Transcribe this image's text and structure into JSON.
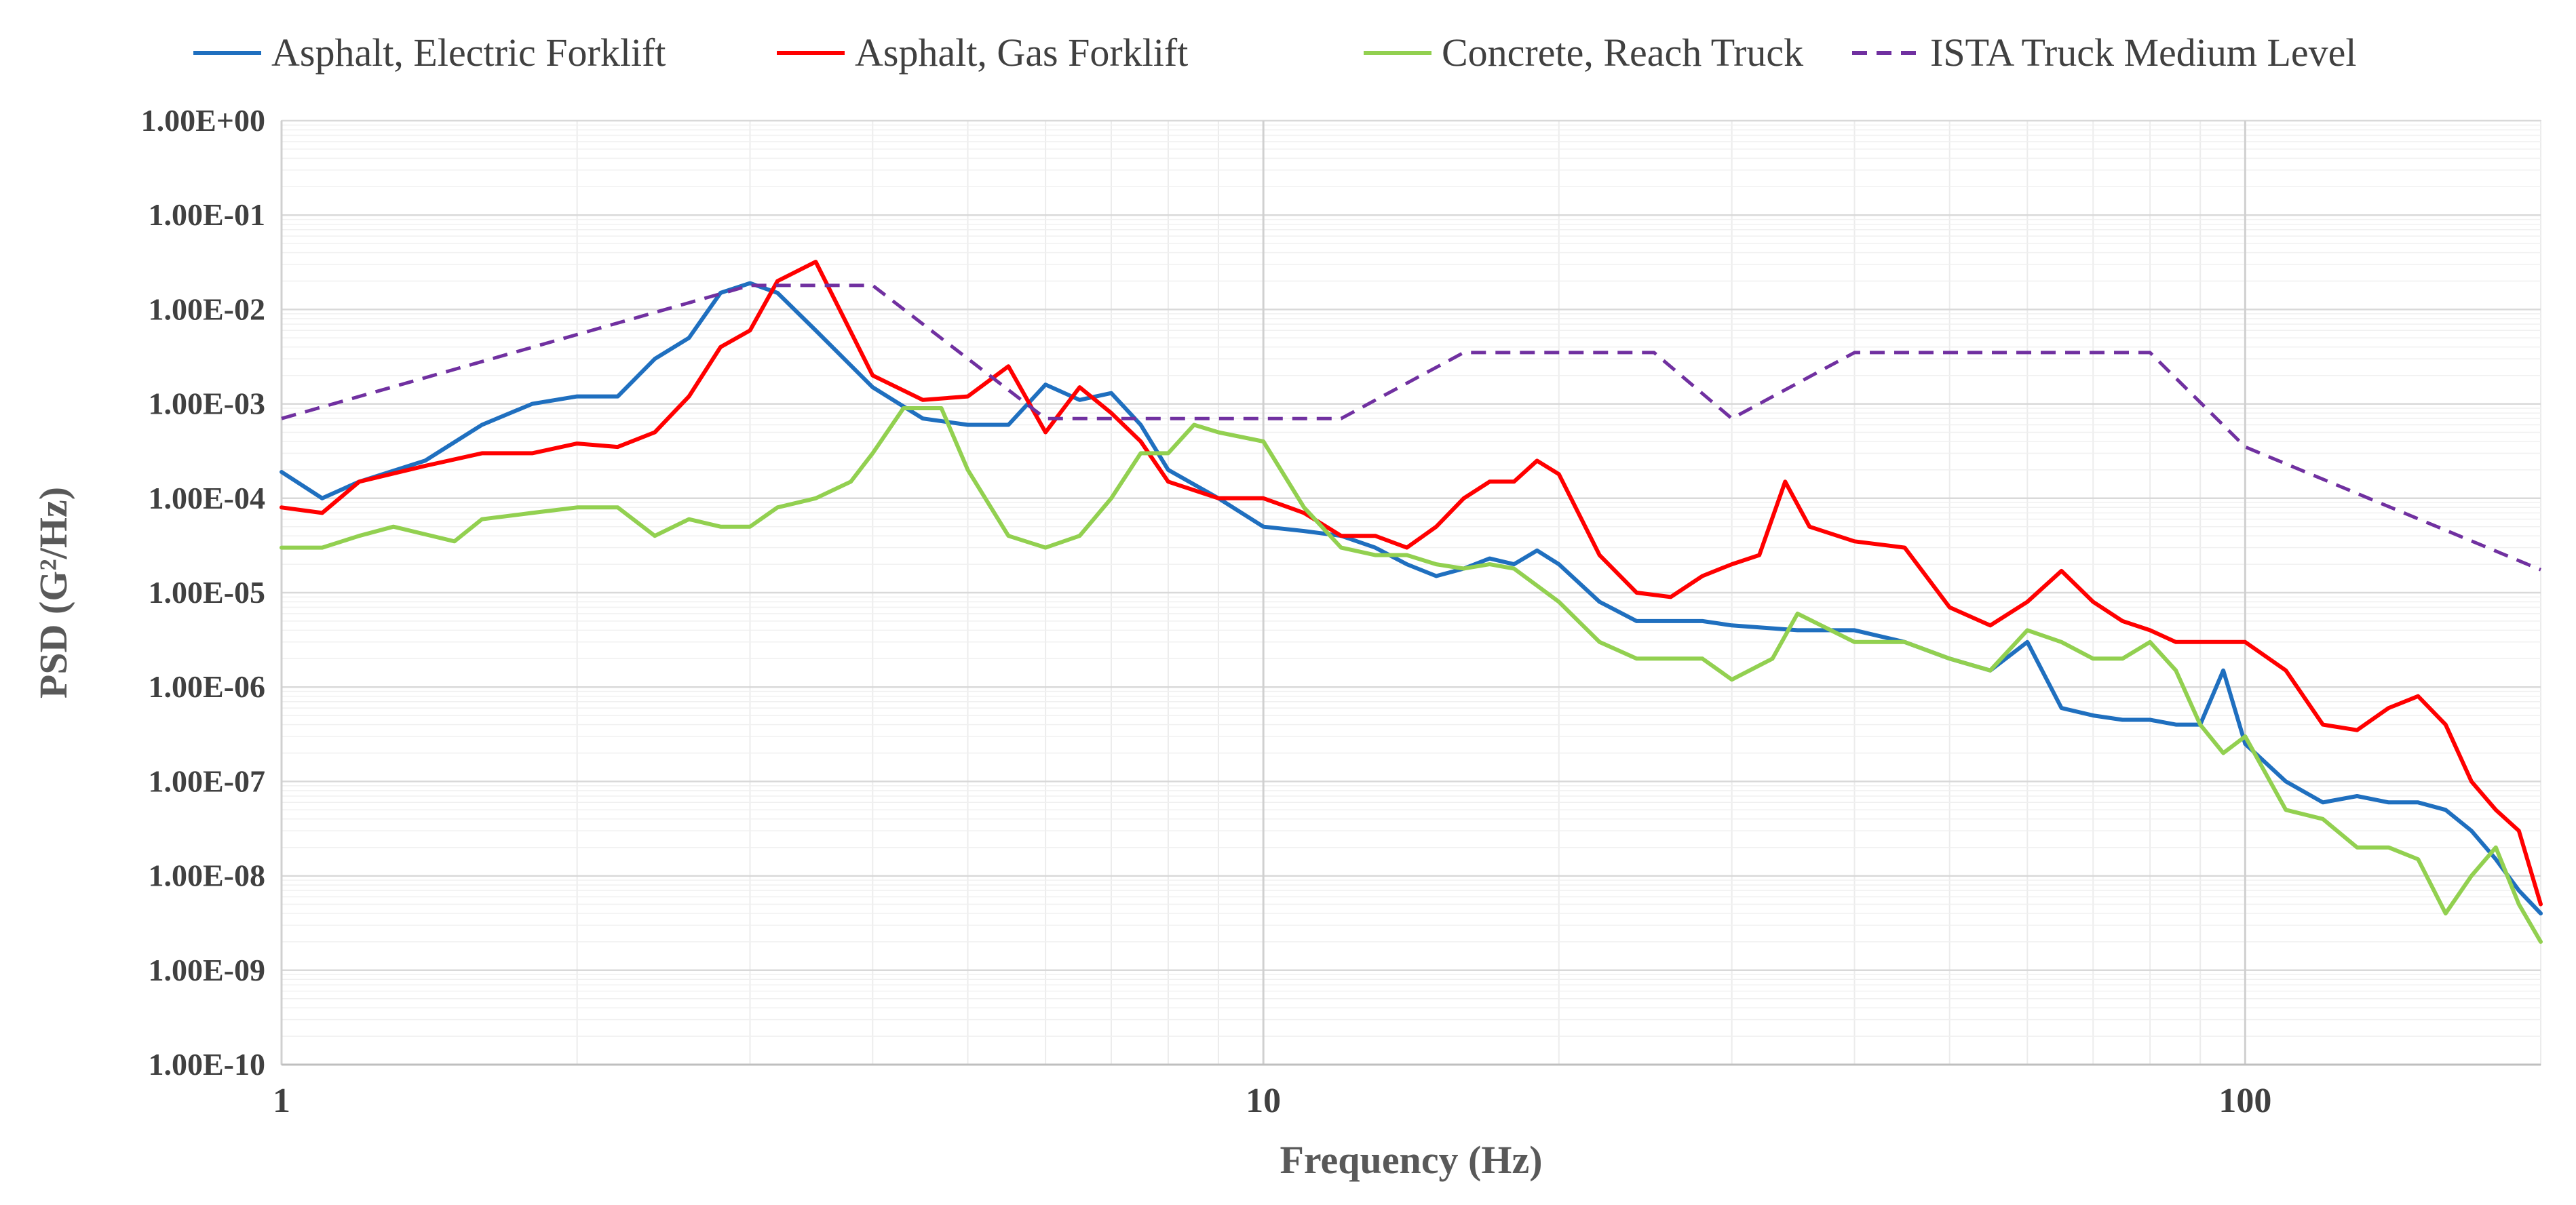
{
  "chart_data": {
    "type": "line",
    "title": "",
    "xlabel": "Frequency (Hz)",
    "ylabel": "PSD (G²/Hz)",
    "x_scale": "log",
    "y_scale": "log",
    "xlim": [
      1,
      200
    ],
    "ylim": [
      1e-10,
      1
    ],
    "x_ticks": [
      {
        "value": 1,
        "label": "1"
      },
      {
        "value": 10,
        "label": "10"
      },
      {
        "value": 100,
        "label": "100"
      }
    ],
    "y_ticks": [
      {
        "value": 1,
        "label": "1.00E+00"
      },
      {
        "value": 0.1,
        "label": "1.00E-01"
      },
      {
        "value": 0.01,
        "label": "1.00E-02"
      },
      {
        "value": 0.001,
        "label": "1.00E-03"
      },
      {
        "value": 0.0001,
        "label": "1.00E-04"
      },
      {
        "value": 1e-05,
        "label": "1.00E-05"
      },
      {
        "value": 1e-06,
        "label": "1.00E-06"
      },
      {
        "value": 1e-07,
        "label": "1.00E-07"
      },
      {
        "value": 1e-08,
        "label": "1.00E-08"
      },
      {
        "value": 1e-09,
        "label": "1.00E-09"
      },
      {
        "value": 1e-10,
        "label": "1.00E-10"
      }
    ],
    "grid": true,
    "legend_position": "top",
    "series": [
      {
        "name": "Asphalt, Electric Forklift",
        "color": "#1f6fbf",
        "dash": "solid",
        "x": [
          1,
          1.1,
          1.2,
          1.4,
          1.6,
          1.8,
          2,
          2.2,
          2.4,
          2.6,
          2.8,
          3,
          3.2,
          3.5,
          4,
          4.5,
          5,
          5.5,
          6,
          6.5,
          7,
          7.5,
          8,
          9,
          10,
          11,
          12,
          13,
          14,
          15,
          16,
          17,
          18,
          19,
          20,
          22,
          24,
          26,
          28,
          30,
          35,
          40,
          45,
          50,
          55,
          60,
          65,
          70,
          75,
          80,
          85,
          90,
          95,
          100,
          110,
          120,
          130,
          140,
          150,
          160,
          170,
          180,
          190,
          200
        ],
        "y": [
          0.00019,
          0.0001,
          0.00015,
          0.00025,
          0.0006,
          0.001,
          0.0012,
          0.0012,
          0.003,
          0.005,
          0.015,
          0.019,
          0.015,
          0.006,
          0.0015,
          0.0007,
          0.0006,
          0.0006,
          0.0016,
          0.0011,
          0.0013,
          0.0006,
          0.0002,
          0.0001,
          5e-05,
          4.5e-05,
          4e-05,
          3e-05,
          2e-05,
          1.5e-05,
          1.8e-05,
          2.3e-05,
          2e-05,
          2.8e-05,
          2e-05,
          8e-06,
          5e-06,
          5e-06,
          5e-06,
          4.5e-06,
          4e-06,
          4e-06,
          3e-06,
          2e-06,
          1.5e-06,
          3e-06,
          6e-07,
          5e-07,
          4.5e-07,
          4.5e-07,
          4e-07,
          4e-07,
          1.5e-06,
          2.5e-07,
          1e-07,
          6e-08,
          7e-08,
          6e-08,
          6e-08,
          5e-08,
          3e-08,
          1.5e-08,
          7e-09,
          4e-09
        ]
      },
      {
        "name": "Asphalt, Gas Forklift",
        "color": "#ff0000",
        "dash": "solid",
        "x": [
          1,
          1.1,
          1.2,
          1.4,
          1.6,
          1.8,
          2,
          2.2,
          2.4,
          2.6,
          2.8,
          3,
          3.2,
          3.5,
          4,
          4.5,
          5,
          5.5,
          6,
          6.5,
          7,
          7.5,
          8,
          9,
          10,
          11,
          12,
          13,
          14,
          15,
          16,
          17,
          18,
          19,
          20,
          22,
          24,
          26,
          28,
          30,
          32,
          34,
          36,
          40,
          45,
          50,
          55,
          60,
          65,
          70,
          75,
          80,
          85,
          90,
          95,
          100,
          110,
          120,
          130,
          140,
          150,
          160,
          170,
          180,
          190,
          200
        ],
        "y": [
          8e-05,
          7e-05,
          0.00015,
          0.00022,
          0.0003,
          0.0003,
          0.00038,
          0.00035,
          0.0005,
          0.0012,
          0.004,
          0.006,
          0.02,
          0.032,
          0.002,
          0.0011,
          0.0012,
          0.0025,
          0.0005,
          0.0015,
          0.0008,
          0.0004,
          0.00015,
          0.0001,
          0.0001,
          7e-05,
          4e-05,
          4e-05,
          3e-05,
          5e-05,
          0.0001,
          0.00015,
          0.00015,
          0.00025,
          0.00018,
          2.5e-05,
          1e-05,
          9e-06,
          1.5e-05,
          2e-05,
          2.5e-05,
          0.00015,
          5e-05,
          3.5e-05,
          3e-05,
          7e-06,
          4.5e-06,
          8e-06,
          1.7e-05,
          8e-06,
          5e-06,
          4e-06,
          3e-06,
          3e-06,
          3e-06,
          3e-06,
          1.5e-06,
          4e-07,
          3.5e-07,
          6e-07,
          8e-07,
          4e-07,
          1e-07,
          5e-08,
          3e-08,
          5e-09
        ]
      },
      {
        "name": "Concrete, Reach Truck",
        "color": "#92d050",
        "dash": "solid",
        "x": [
          1,
          1.1,
          1.2,
          1.3,
          1.5,
          1.6,
          1.8,
          2,
          2.2,
          2.4,
          2.6,
          2.8,
          3,
          3.2,
          3.5,
          3.8,
          4,
          4.3,
          4.7,
          5,
          5.5,
          6,
          6.5,
          7,
          7.5,
          8,
          8.5,
          9,
          10,
          11,
          12,
          13,
          14,
          15,
          16,
          17,
          18,
          20,
          22,
          24,
          26,
          28,
          30,
          33,
          35,
          40,
          45,
          50,
          55,
          60,
          65,
          70,
          75,
          80,
          85,
          90,
          95,
          100,
          110,
          120,
          130,
          140,
          150,
          160,
          170,
          180,
          190,
          200
        ],
        "y": [
          3e-05,
          3e-05,
          4e-05,
          5e-05,
          3.5e-05,
          6e-05,
          7e-05,
          8e-05,
          8e-05,
          4e-05,
          6e-05,
          5e-05,
          5e-05,
          8e-05,
          0.0001,
          0.00015,
          0.0003,
          0.0009,
          0.0009,
          0.0002,
          4e-05,
          3e-05,
          4e-05,
          0.0001,
          0.0003,
          0.0003,
          0.0006,
          0.0005,
          0.0004,
          8e-05,
          3e-05,
          2.5e-05,
          2.5e-05,
          2e-05,
          1.8e-05,
          2e-05,
          1.8e-05,
          8e-06,
          3e-06,
          2e-06,
          2e-06,
          2e-06,
          1.2e-06,
          2e-06,
          6e-06,
          3e-06,
          3e-06,
          2e-06,
          1.5e-06,
          4e-06,
          3e-06,
          2e-06,
          2e-06,
          3e-06,
          1.5e-06,
          4e-07,
          2e-07,
          3e-07,
          5e-08,
          4e-08,
          2e-08,
          2e-08,
          1.5e-08,
          4e-09,
          1e-08,
          2e-08,
          5e-09,
          2e-09
        ]
      },
      {
        "name": "ISTA Truck Medium Level",
        "color": "#7030a0",
        "dash": "dashed",
        "x": [
          1,
          3,
          4,
          6,
          12,
          16,
          25,
          30,
          40,
          80,
          100,
          200
        ],
        "y": [
          0.0007,
          0.018,
          0.018,
          0.0007,
          0.0007,
          0.0035,
          0.0035,
          0.0007,
          0.0035,
          0.0035,
          0.00035,
          1.75e-05
        ]
      }
    ]
  }
}
